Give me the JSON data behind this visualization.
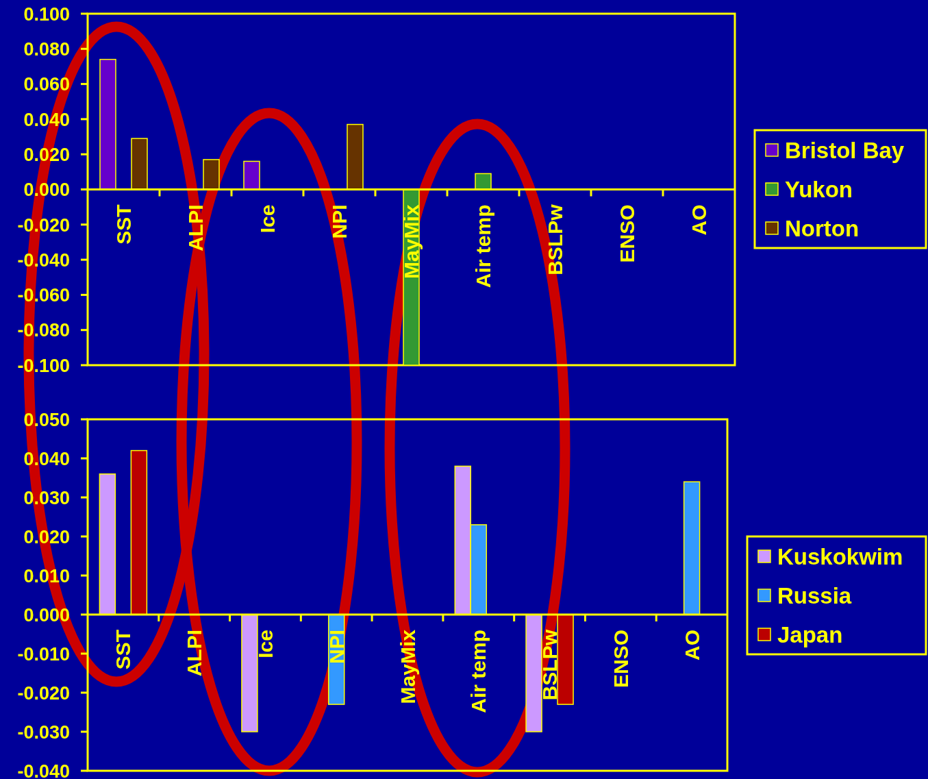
{
  "chart_data": [
    {
      "type": "bar",
      "categories": [
        "SST",
        "ALPI",
        "Ice",
        "NPI",
        "MayMix",
        "Air temp",
        "BSLPw",
        "ENSO",
        "AO"
      ],
      "series": [
        {
          "name": "Bristol Bay",
          "color": "#6600cc",
          "values": [
            0.074,
            null,
            0.016,
            null,
            null,
            null,
            null,
            null,
            null
          ]
        },
        {
          "name": "Yukon",
          "color": "#339933",
          "values": [
            null,
            null,
            null,
            null,
            -0.1,
            0.009,
            null,
            null,
            null
          ]
        },
        {
          "name": "Norton",
          "color": "#663300",
          "values": [
            0.029,
            0.017,
            null,
            0.037,
            null,
            null,
            null,
            null,
            null
          ]
        }
      ],
      "ylim": [
        -0.1,
        0.1
      ],
      "yticks": [
        {
          "value": -0.1,
          "label": "-0.100"
        },
        {
          "value": -0.08,
          "label": "-0.080"
        },
        {
          "value": -0.06,
          "label": "-0.060"
        },
        {
          "value": -0.04,
          "label": "-0.040"
        },
        {
          "value": -0.02,
          "label": "-0.020"
        },
        {
          "value": 0,
          "label": "0.000"
        },
        {
          "value": 0.02,
          "label": "0.020"
        },
        {
          "value": 0.04,
          "label": "0.040"
        },
        {
          "value": 0.06,
          "label": "0.060"
        },
        {
          "value": 0.08,
          "label": "0.080"
        },
        {
          "value": 0.1,
          "label": "0.100"
        }
      ],
      "legend": "right"
    },
    {
      "type": "bar",
      "categories": [
        "SST",
        "ALPI",
        "Ice",
        "NPI",
        "MayMix",
        "Air temp",
        "BSLPw",
        "ENSO",
        "AO"
      ],
      "series": [
        {
          "name": "Kuskokwim",
          "color": "#cc99ff",
          "values": [
            0.036,
            null,
            -0.03,
            null,
            null,
            0.038,
            -0.03,
            null,
            null
          ]
        },
        {
          "name": "Russia",
          "color": "#3399ff",
          "values": [
            null,
            null,
            null,
            -0.023,
            null,
            0.023,
            null,
            null,
            0.034
          ]
        },
        {
          "name": "Japan",
          "color": "#bb0000",
          "values": [
            0.042,
            null,
            null,
            null,
            null,
            null,
            -0.023,
            null,
            null
          ]
        }
      ],
      "ylim": [
        -0.04,
        0.05
      ],
      "yticks": [
        {
          "value": -0.04,
          "label": "-0.040"
        },
        {
          "value": -0.03,
          "label": "-0.030"
        },
        {
          "value": -0.02,
          "label": "-0.020"
        },
        {
          "value": -0.01,
          "label": "-0.010"
        },
        {
          "value": 0,
          "label": "0.000"
        },
        {
          "value": 0.01,
          "label": "0.010"
        },
        {
          "value": 0.02,
          "label": "0.020"
        },
        {
          "value": 0.03,
          "label": "0.030"
        },
        {
          "value": 0.04,
          "label": "0.040"
        },
        {
          "value": 0.05,
          "label": "0.050"
        }
      ],
      "legend": "right"
    }
  ]
}
